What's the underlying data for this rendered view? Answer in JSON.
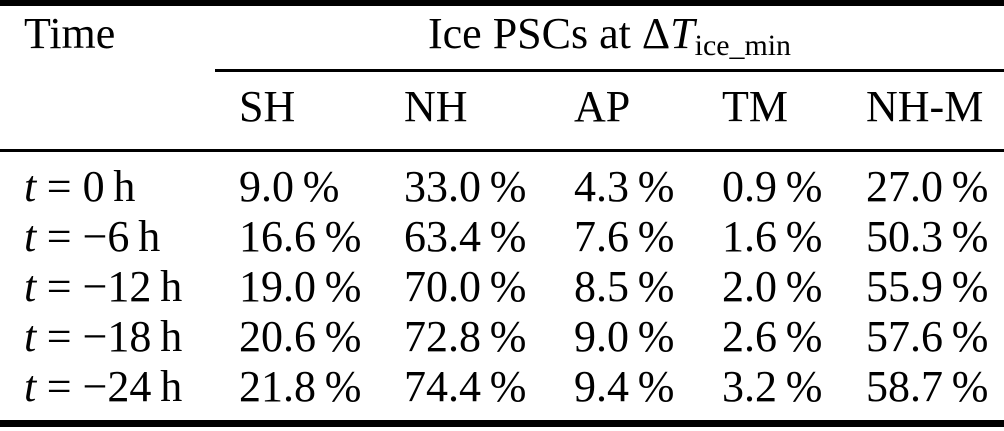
{
  "table": {
    "corner_header": "Time",
    "span_header": {
      "prefix": "Ice PSCs at",
      "delta": "Δ",
      "symbol": "T",
      "subscript": "ice_min"
    },
    "columns": [
      "SH",
      "NH",
      "AP",
      "TM",
      "NH-M"
    ],
    "rows": [
      {
        "time_var": "t",
        "time_rest": "= 0 h",
        "values": [
          "9.0 %",
          "33.0 %",
          "4.3 %",
          "0.9 %",
          "27.0 %"
        ]
      },
      {
        "time_var": "t",
        "time_rest": "= −6 h",
        "values": [
          "16.6 %",
          "63.4 %",
          "7.6 %",
          "1.6 %",
          "50.3 %"
        ]
      },
      {
        "time_var": "t",
        "time_rest": "= −12 h",
        "values": [
          "19.0 %",
          "70.0 %",
          "8.5 %",
          "2.0 %",
          "55.9 %"
        ]
      },
      {
        "time_var": "t",
        "time_rest": "= −18 h",
        "values": [
          "20.6 %",
          "72.8 %",
          "9.0 %",
          "2.6 %",
          "57.6 %"
        ]
      },
      {
        "time_var": "t",
        "time_rest": "= −24 h",
        "values": [
          "21.8 %",
          "74.4 %",
          "9.4 %",
          "3.2 %",
          "58.7 %"
        ]
      }
    ]
  },
  "colors": {
    "text": "#000000",
    "rule": "#000000",
    "background": "#ffffff"
  }
}
